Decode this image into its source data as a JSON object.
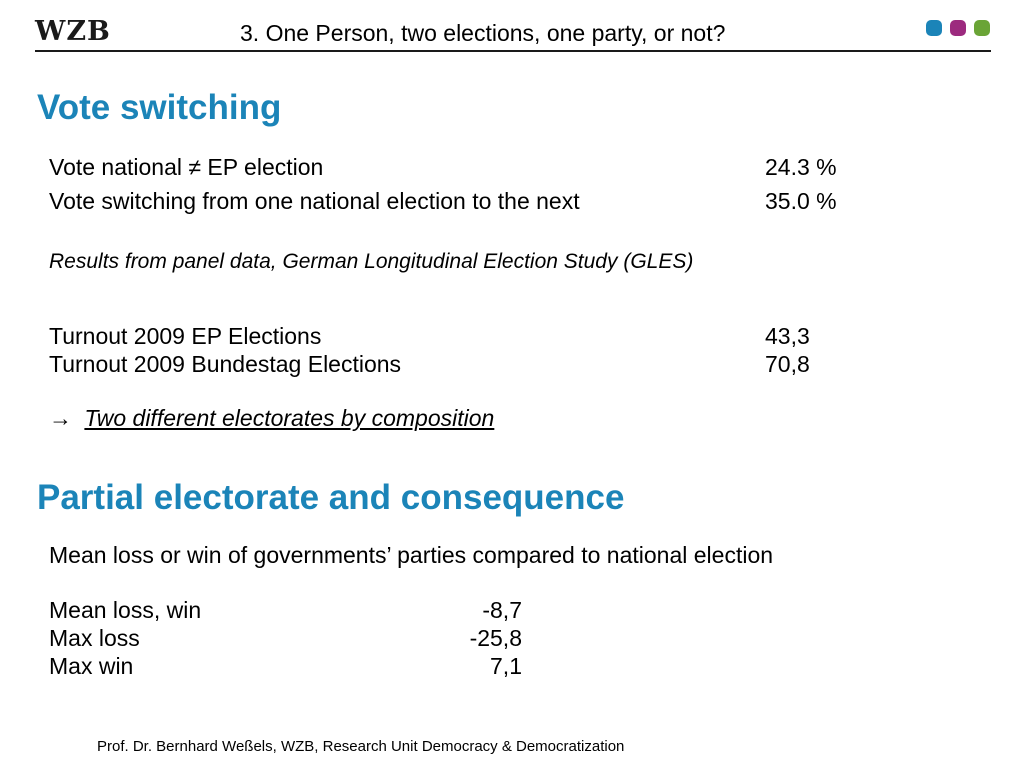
{
  "header": {
    "logo": "WZB",
    "title": "3. One Person, two elections, one party, or not?",
    "dots": [
      {
        "name": "blue-dot",
        "color": "#1b84b8"
      },
      {
        "name": "purple-dot",
        "color": "#9c2a7e"
      },
      {
        "name": "green-dot",
        "color": "#6aa436"
      }
    ]
  },
  "section1": {
    "title": "Vote switching",
    "rows": [
      {
        "label": "Vote national ≠ EP election",
        "value": "24.3 %"
      },
      {
        "label": "Vote switching from one national election to the next",
        "value": "35.0 %"
      }
    ],
    "source": "Results from panel data, German Longitudinal Election Study (GLES)",
    "turnout": [
      {
        "label": "Turnout 2009 EP Elections",
        "value": "43,3"
      },
      {
        "label": "Turnout 2009 Bundestag Elections",
        "value": "70,8"
      }
    ],
    "arrow": "→",
    "conclusion": "Two different electorates by composition"
  },
  "section2": {
    "title": "Partial electorate and consequence",
    "intro": "Mean loss or win of governments’ parties compared to national election",
    "rows": [
      {
        "label": "Mean loss, win",
        "value": "-8,7"
      },
      {
        "label": "Max loss",
        "value": "-25,8"
      },
      {
        "label": "Max win",
        "value": "7,1"
      }
    ]
  },
  "footer": {
    "text": "Prof. Dr. Bernhard Weßels, WZB, Research Unit Democracy & Democratization"
  }
}
